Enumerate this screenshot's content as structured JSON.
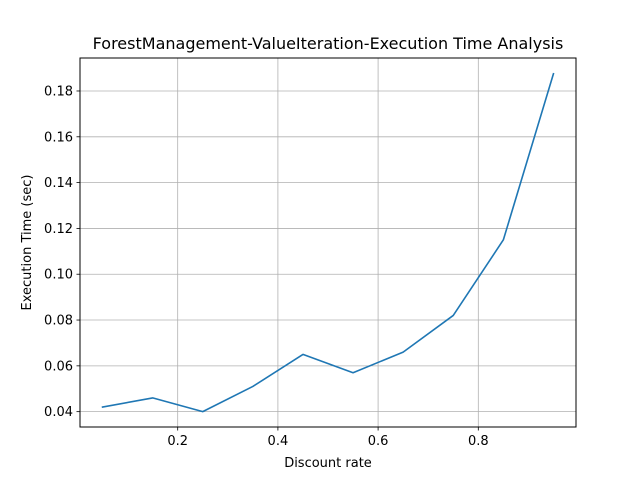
{
  "chart_data": {
    "type": "line",
    "title": "ForestManagement-ValueIteration-Execution Time Analysis",
    "xlabel": "Discount rate",
    "ylabel": "Execution Time (sec)",
    "xlim": [
      0.005,
      0.995
    ],
    "ylim": [
      0.0333,
      0.1944
    ],
    "xticks": [
      0.2,
      0.4,
      0.6,
      0.8
    ],
    "xtick_labels": [
      "0.2",
      "0.4",
      "0.6",
      "0.8"
    ],
    "yticks": [
      0.04,
      0.06,
      0.08,
      0.1,
      0.12,
      0.14,
      0.16,
      0.18
    ],
    "ytick_labels": [
      "0.04",
      "0.06",
      "0.08",
      "0.10",
      "0.12",
      "0.14",
      "0.16",
      "0.18"
    ],
    "grid": true,
    "series": [
      {
        "color": "#1f77b4",
        "x": [
          0.05,
          0.15,
          0.25,
          0.35,
          0.45,
          0.55,
          0.65,
          0.75,
          0.85,
          0.95
        ],
        "y": [
          0.042,
          0.046,
          0.04,
          0.051,
          0.065,
          0.057,
          0.066,
          0.082,
          0.115,
          0.1875
        ]
      }
    ]
  }
}
